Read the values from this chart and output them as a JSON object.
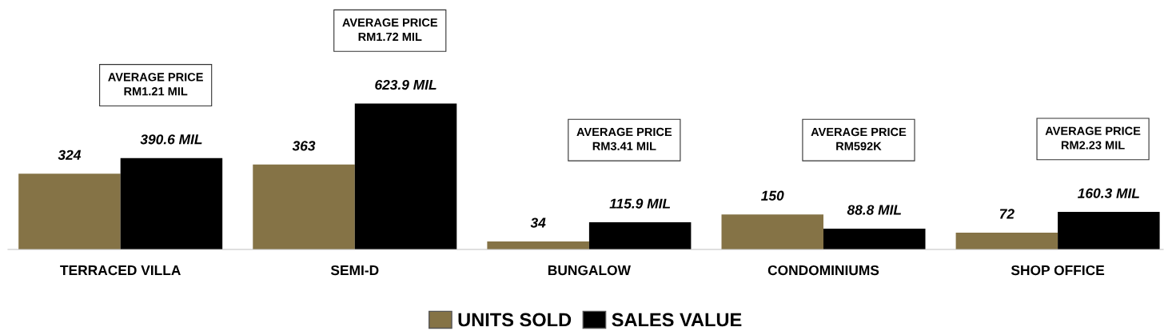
{
  "chart_data": {
    "type": "bar",
    "categories": [
      "TERRACED VILLA",
      "SEMI-D",
      "BUNGALOW",
      "CONDOMINIUMS",
      "SHOP OFFICE"
    ],
    "series": [
      {
        "name": "UNITS SOLD",
        "color": "#857346",
        "values": [
          324,
          363,
          34,
          150,
          72
        ],
        "value_labels": [
          "324",
          "363",
          "34",
          "150",
          "72"
        ]
      },
      {
        "name": "SALES VALUE",
        "color": "#000000",
        "values": [
          390.6,
          623.9,
          115.9,
          88.8,
          160.3
        ],
        "value_labels": [
          "390.6 MIL",
          "623.9 MIL",
          "115.9 MIL",
          "88.8 MIL",
          "160.3 MIL"
        ]
      }
    ],
    "tick_labels": "x",
    "grid": false,
    "legend": "bottom",
    "annotations": [
      "AVERAGE PRICE\nRM1.21 MIL",
      "AVERAGE PRICE\nRM1.72 MIL",
      "AVERAGE PRICE\nRM3.41 MIL",
      "AVERAGE PRICE\nRM592K",
      "AVERAGE PRICE\nRM2.23 MIL"
    ]
  }
}
